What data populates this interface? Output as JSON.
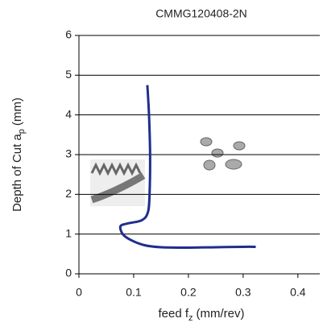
{
  "chart_data": {
    "type": "line",
    "title": "CMMG120408-2N",
    "x_label": "feed f",
    "x_label_sub": "z",
    "x_label_unit": "(mm/rev)",
    "y_label": "Depth of Cut a",
    "y_label_sub": "p",
    "y_label_unit": "(mm)",
    "xlim": [
      0,
      0.44
    ],
    "xticks": [
      0,
      0.1,
      0.2,
      0.3,
      0.4
    ],
    "ylim": [
      0,
      6
    ],
    "yticks": [
      0,
      1,
      2,
      3,
      4,
      5,
      6
    ],
    "grid": true,
    "series": [
      {
        "color": "#1f2e8c",
        "x": [
          0.125,
          0.128,
          0.13,
          0.129,
          0.126,
          0.115,
          0.09,
          0.076,
          0.08,
          0.095,
          0.12,
          0.15,
          0.2,
          0.25,
          0.3,
          0.323
        ],
        "values": [
          4.75,
          4.0,
          3.0,
          2.0,
          1.55,
          1.35,
          1.27,
          1.2,
          1.0,
          0.85,
          0.72,
          0.67,
          0.66,
          0.67,
          0.68,
          0.68
        ]
      }
    ]
  }
}
